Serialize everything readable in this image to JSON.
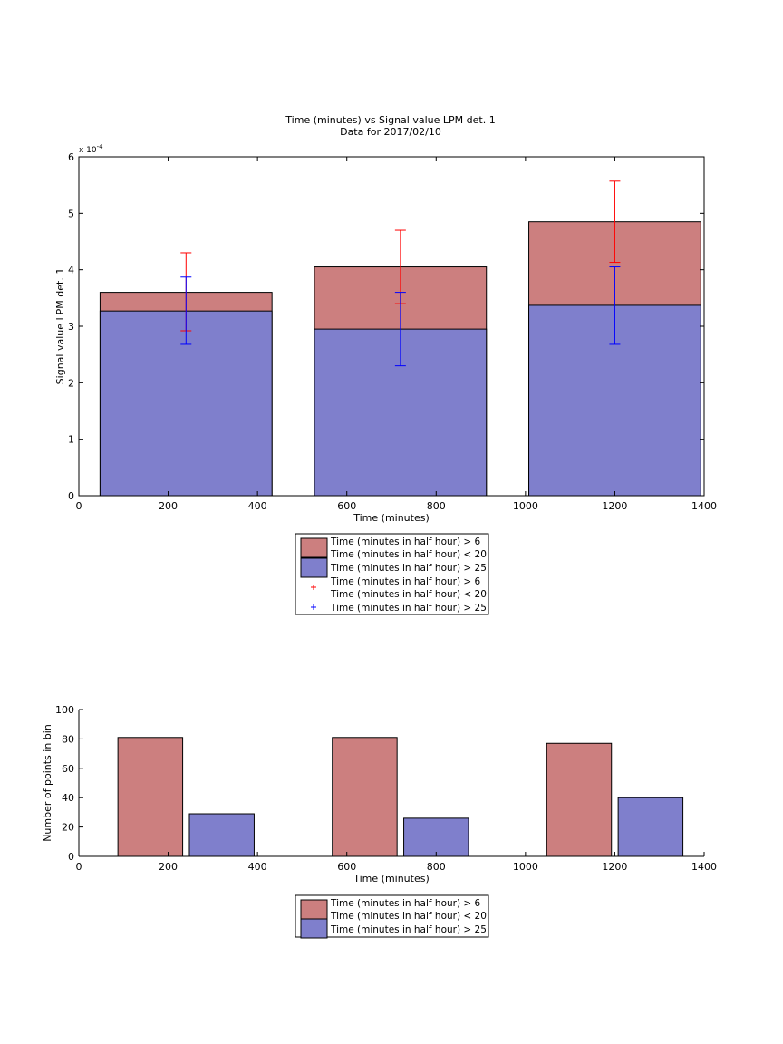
{
  "chart_data": [
    {
      "type": "bar",
      "title": "Time (minutes) vs Signal value LPM det. 1",
      "subtitle": "Data for 2017/02/10",
      "xlabel": "Time (minutes)",
      "ylabel": "Signal value LPM det. 1",
      "y_exponent_label": "x 10",
      "y_exponent_power": "-4",
      "xlim": [
        0,
        1400
      ],
      "ylim": [
        0,
        6
      ],
      "xticks": [
        0,
        200,
        400,
        600,
        800,
        1000,
        1200,
        1400
      ],
      "yticks": [
        0,
        1,
        2,
        3,
        4,
        5,
        6
      ],
      "bar_width": 385,
      "x": [
        240,
        720,
        1200
      ],
      "grid": false,
      "legend_position": "below",
      "series": [
        {
          "label_line1": "Time (minutes in half hour) > 6",
          "label_line2": "Time (minutes in half hour) < 20",
          "color": "#cc7f7f",
          "values": [
            3.6,
            4.05,
            4.85
          ]
        },
        {
          "label_line1": "Time (minutes in half hour) > 25",
          "color": "#7f7fcc",
          "values": [
            3.27,
            2.95,
            3.37
          ]
        }
      ],
      "error_bars": [
        {
          "label_line1": "Time (minutes in half hour) > 6",
          "label_line2": "Time (minutes in half hour) < 20",
          "color": "#ff0000",
          "center": [
            3.6,
            4.05,
            4.85
          ],
          "low": [
            2.92,
            3.4,
            4.13
          ],
          "high": [
            4.3,
            4.7,
            5.57
          ]
        },
        {
          "label_line1": "Time (minutes in half hour) > 25",
          "color": "#0000ff",
          "center": [
            3.27,
            2.95,
            3.37
          ],
          "low": [
            2.68,
            2.3,
            2.68
          ],
          "high": [
            3.87,
            3.6,
            4.05
          ]
        }
      ]
    },
    {
      "type": "bar",
      "xlabel": "Time (minutes)",
      "ylabel": "Number of points in bin",
      "xlim": [
        0,
        1400
      ],
      "ylim": [
        0,
        100
      ],
      "xticks": [
        0,
        200,
        400,
        600,
        800,
        1000,
        1200,
        1400
      ],
      "yticks": [
        0,
        20,
        40,
        60,
        80,
        100
      ],
      "bar_width": 145,
      "grid": false,
      "legend_position": "below",
      "series": [
        {
          "label_line1": "Time (minutes in half hour) > 6",
          "label_line2": "Time (minutes in half hour) < 20",
          "color": "#cc7f7f",
          "x": [
            160,
            640,
            1120
          ],
          "values": [
            81,
            81,
            77
          ]
        },
        {
          "label_line1": "Time (minutes in half hour) > 25",
          "color": "#7f7fcc",
          "x": [
            320,
            800,
            1280
          ],
          "values": [
            29,
            26,
            40
          ]
        }
      ]
    }
  ]
}
